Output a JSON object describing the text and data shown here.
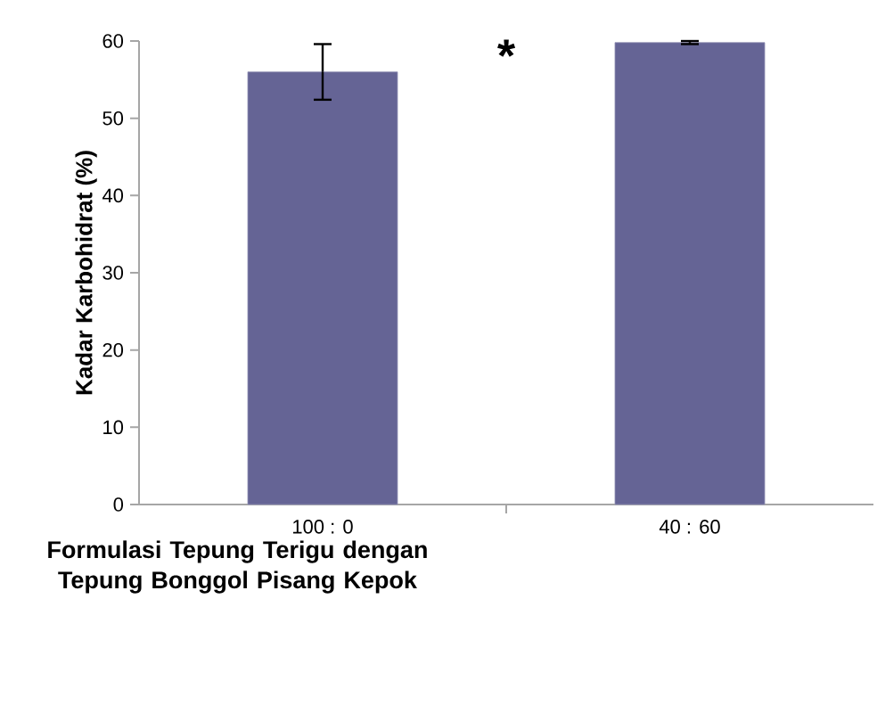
{
  "chart_data": {
    "type": "bar",
    "categories": [
      "100 : 0",
      "40 : 60"
    ],
    "values": [
      56,
      59.8
    ],
    "errors": [
      3.6,
      0.2
    ],
    "color": "#656495",
    "xlabel": "Formulasi Tepung Terigu dengan Tepung Bonggol Pisang Kepok",
    "ylabel": "Kadar Karbohidrat (%)",
    "ylim": [
      0,
      60
    ],
    "yticks": [
      0,
      10,
      20,
      30,
      40,
      50,
      60
    ],
    "annotations": [
      "*"
    ],
    "grid": false
  }
}
